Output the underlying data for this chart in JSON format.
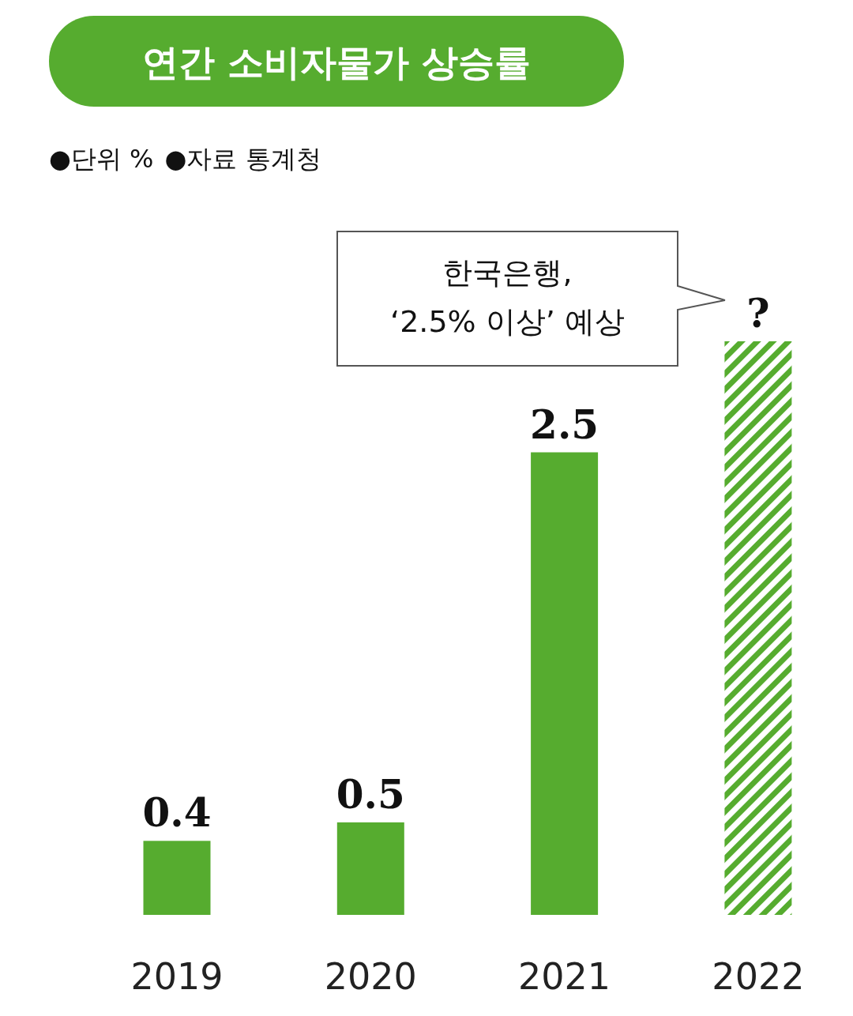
{
  "chart_data": {
    "type": "bar",
    "title": "연간 소비자물가 상승률",
    "categories": [
      "2019",
      "2020",
      "2021",
      "2022"
    ],
    "series": [
      {
        "color": "#56ac2f",
        "values": [
          0.4,
          0.5,
          2.5,
          null
        ],
        "value_labels": [
          "0.4",
          "0.5",
          "2.5",
          null
        ]
      },
      {
        "color": "#56ac2f",
        "values": [
          null,
          null,
          null,
          3.1
        ],
        "value_labels": [
          null,
          null,
          null,
          "?"
        ]
      }
    ],
    "annotations": [
      "●단위 %",
      "●자료 통계청",
      "한국은행,\n‘2.5% 이상’ 예상"
    ]
  }
}
